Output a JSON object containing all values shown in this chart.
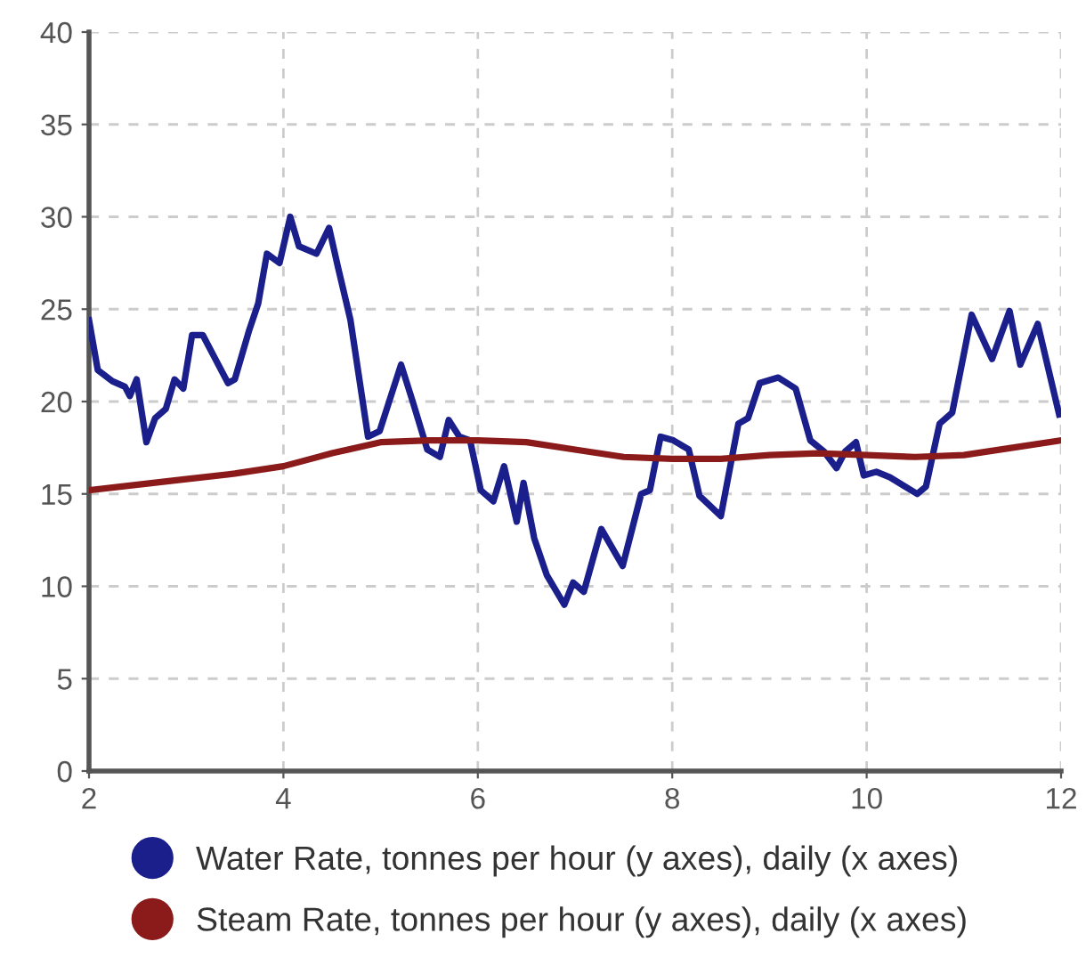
{
  "chart_data": {
    "type": "line",
    "xlim": [
      2,
      12
    ],
    "xticks": [
      2,
      4,
      6,
      8,
      10,
      12
    ],
    "ylim": [
      0,
      40
    ],
    "yticks": [
      0,
      5,
      10,
      15,
      20,
      25,
      30,
      35,
      40
    ],
    "grid": true,
    "legend": "bottom",
    "marker": "none",
    "line_style": "solid",
    "series": [
      {
        "name": "Water Rate, tonnes per hour (y axes), daily (x axes)",
        "color": "#1a1f8c",
        "x": [
          2.0,
          2.09,
          2.24,
          2.37,
          2.42,
          2.49,
          2.59,
          2.68,
          2.79,
          2.88,
          2.97,
          3.06,
          3.17,
          3.28,
          3.43,
          3.5,
          3.65,
          3.74,
          3.83,
          3.96,
          4.07,
          4.16,
          4.34,
          4.47,
          4.56,
          4.69,
          4.87,
          4.99,
          5.21,
          5.33,
          5.48,
          5.61,
          5.7,
          5.81,
          5.92,
          6.03,
          6.16,
          6.27,
          6.4,
          6.47,
          6.58,
          6.71,
          6.89,
          6.98,
          7.09,
          7.27,
          7.49,
          7.68,
          7.77,
          7.88,
          8.01,
          8.17,
          8.28,
          8.5,
          8.68,
          8.78,
          8.9,
          9.09,
          9.27,
          9.42,
          9.56,
          9.69,
          9.78,
          9.89,
          9.97,
          10.1,
          10.24,
          10.52,
          10.61,
          10.75,
          10.88,
          11.08,
          11.29,
          11.47,
          11.58,
          11.76,
          11.98
        ],
        "values": [
          24.4,
          21.7,
          21.1,
          20.8,
          20.3,
          21.2,
          17.8,
          19.1,
          19.6,
          21.2,
          20.7,
          23.6,
          23.6,
          22.5,
          21.0,
          21.2,
          23.9,
          25.3,
          28.0,
          27.5,
          30.0,
          28.4,
          28.0,
          29.4,
          27.3,
          24.4,
          18.1,
          18.4,
          22.0,
          20.0,
          17.4,
          17.0,
          19.0,
          18.1,
          17.9,
          15.2,
          14.6,
          16.5,
          13.5,
          15.6,
          12.6,
          10.6,
          9.0,
          10.2,
          9.7,
          13.1,
          11.1,
          15.0,
          15.2,
          18.1,
          17.9,
          17.4,
          14.9,
          13.8,
          18.8,
          19.1,
          21.0,
          21.3,
          20.7,
          17.9,
          17.3,
          16.4,
          17.3,
          17.8,
          16.0,
          16.2,
          15.9,
          15.0,
          15.4,
          18.8,
          19.4,
          24.7,
          22.3,
          24.9,
          22.0,
          24.2,
          19.3
        ]
      },
      {
        "name": "Steam Rate, tonnes per hour (y axes), daily (x axes)",
        "color": "#8b1a1a",
        "x": [
          2,
          2.5,
          3,
          3.5,
          4,
          4.5,
          5,
          5.5,
          6,
          6.5,
          7,
          7.5,
          8,
          8.5,
          9,
          9.5,
          10,
          10.5,
          11,
          11.5,
          12
        ],
        "values": [
          15.2,
          15.5,
          15.8,
          16.1,
          16.5,
          17.2,
          17.8,
          17.9,
          17.9,
          17.8,
          17.4,
          17.0,
          16.9,
          16.9,
          17.1,
          17.2,
          17.1,
          17.0,
          17.1,
          17.5,
          17.9
        ]
      }
    ]
  }
}
